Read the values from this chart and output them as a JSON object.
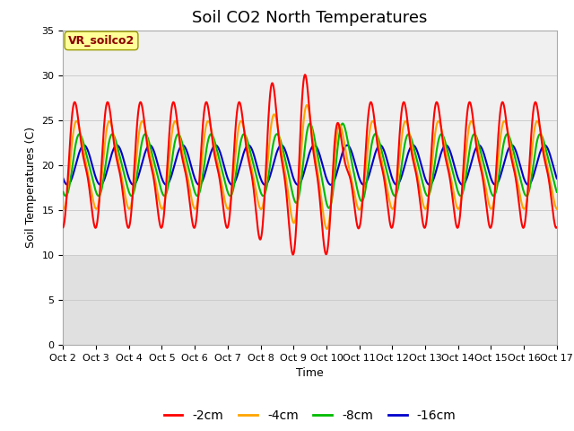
{
  "title": "Soil CO2 North Temperatures",
  "xlabel": "Time",
  "ylabel": "Soil Temperatures (C)",
  "annotation": "VR_soilco2",
  "ylim": [
    0,
    35
  ],
  "yticks": [
    0,
    5,
    10,
    15,
    20,
    25,
    30,
    35
  ],
  "x_labels": [
    "Oct 2",
    "Oct 3",
    "Oct 4",
    "Oct 5",
    "Oct 6",
    "Oct 7",
    "Oct 8",
    "Oct 9",
    "Oct 10",
    "Oct 11",
    "Oct 12",
    "Oct 13",
    "Oct 14",
    "Oct 15",
    "Oct 16",
    "Oct 17"
  ],
  "n_days": 15,
  "series": [
    {
      "label": "-2cm",
      "color": "#FF0000"
    },
    {
      "label": "-4cm",
      "color": "#FFA500"
    },
    {
      "label": "-8cm",
      "color": "#00BB00"
    },
    {
      "label": "-16cm",
      "color": "#0000CC"
    }
  ],
  "legend_colors": [
    "#FF0000",
    "#FFA500",
    "#00BB00",
    "#0000CC"
  ],
  "legend_labels": [
    "-2cm",
    "-4cm",
    "-8cm",
    "-16cm"
  ],
  "background_data": "#f0f0f0",
  "background_lower": "#e0e0e0",
  "grid_color": "#cccccc",
  "title_fontsize": 13,
  "label_fontsize": 9,
  "tick_fontsize": 8,
  "annotation_fontsize": 9,
  "figsize": [
    6.4,
    4.8
  ],
  "dpi": 100
}
